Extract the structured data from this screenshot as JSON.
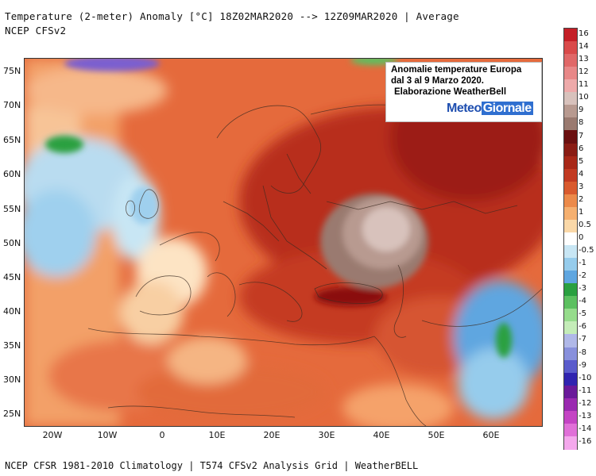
{
  "header": {
    "line1": "Temperature (2-meter) Anomaly  [°C] 18Z02MAR2020 --> 12Z09MAR2020 | Average",
    "line2": "NCEP CFSv2"
  },
  "footer": "NCEP CFSR 1981-2010 Climatology | T574 CFSv2 Analysis Grid | WeatherBELL",
  "overlay": {
    "line1": "Anomalie temperature Europa",
    "line2": "dal 3 al 9 Marzo 2020.",
    "line3": "Elaborazione WeatherBell",
    "logo_part1": "Meteo",
    "logo_part2": "Giornale"
  },
  "axes": {
    "lat_labels": [
      "75N",
      "70N",
      "65N",
      "60N",
      "55N",
      "50N",
      "45N",
      "40N",
      "35N",
      "30N",
      "25N"
    ],
    "lon_labels": [
      "20W",
      "10W",
      "0",
      "10E",
      "20E",
      "30E",
      "40E",
      "50E",
      "60E"
    ]
  },
  "colorbar": {
    "labels": [
      "16",
      "14",
      "13",
      "12",
      "11",
      "10",
      "9",
      "8",
      "7",
      "6",
      "5",
      "4",
      "3",
      "2",
      "1",
      "0.5",
      "0",
      "-0.5",
      "-1",
      "-2",
      "-3",
      "-4",
      "-5",
      "-6",
      "-7",
      "-8",
      "-9",
      "-10",
      "-11",
      "-12",
      "-13",
      "-14",
      "-16"
    ],
    "colors": [
      "#c41f27",
      "#d94a4a",
      "#e06868",
      "#e88888",
      "#eeaaaa",
      "#d8c2bc",
      "#b89a90",
      "#9a7a70",
      "#6b1010",
      "#8a1c14",
      "#a82818",
      "#c23a22",
      "#d95a2e",
      "#ec8a4a",
      "#f5b070",
      "#fad8a8",
      "#ffffff",
      "#c8e6f4",
      "#96ccec",
      "#5fa6e0",
      "#2aa040",
      "#5cc060",
      "#96dc8c",
      "#c4ecb8",
      "#b0b8e8",
      "#8890dc",
      "#5a5ccc",
      "#3024b0",
      "#6a1a9a",
      "#9a2ab0",
      "#c444c4",
      "#e070d8",
      "#f4a8ec"
    ]
  }
}
